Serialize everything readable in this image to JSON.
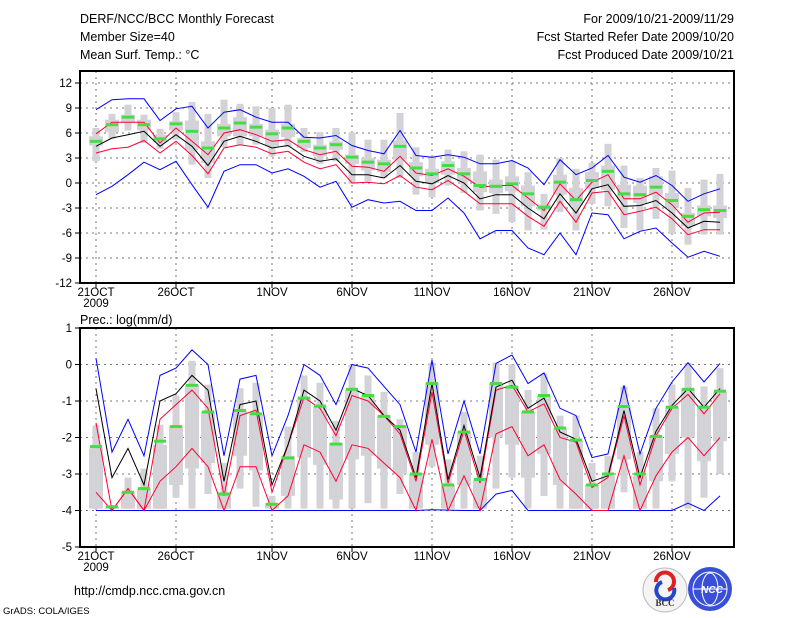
{
  "header": {
    "title": "DERF/NCC/BCC Monthly Forecast",
    "member_size": "Member Size=40",
    "variable": "Mean Surf. Temp.: °C",
    "period": "For 2009/10/21-2009/11/29",
    "start_date": "Fcst Started Refer Date 2009/10/20",
    "produced_date": "Fcst Produced Date 2009/10/21"
  },
  "footer": {
    "url": "http://cmdp.ncc.cma.gov.cn",
    "credit": "GrADS: COLA/IGES",
    "logo_bcc": "BCC",
    "logo_ncc": "NCC"
  },
  "colors": {
    "mean": "#000000",
    "spread": "#ff0033",
    "extreme": "#0000ff",
    "obs": "#44dd44",
    "box": "#d3d3d7"
  },
  "chart_data": [
    {
      "type": "line",
      "title": "Mean Surf. Temp.: °C",
      "ylim": [
        -12,
        12
      ],
      "yticks": [
        "12",
        "9",
        "6",
        "3",
        "0",
        "-3",
        "-6",
        "-9",
        "-12"
      ],
      "ytick_values": [
        12,
        9,
        6,
        3,
        0,
        -3,
        -6,
        -9,
        -12
      ],
      "xtick_labels": [
        "21OCT",
        "26OCT",
        "1NOV",
        "6NOV",
        "11NOV",
        "16NOV",
        "21NOV",
        "26NOV"
      ],
      "xtick_days": [
        0,
        5,
        11,
        16,
        21,
        26,
        31,
        36
      ],
      "year_label": "2009",
      "grid": true,
      "series": {
        "ens_mean": [
          4.4,
          5.4,
          5.8,
          6.2,
          4.4,
          5.8,
          4.4,
          2.1,
          5.0,
          5.6,
          5.0,
          4.2,
          4.5,
          3.2,
          2.6,
          2.9,
          1.0,
          1.0,
          0.6,
          2.1,
          0.2,
          -0.1,
          0.9,
          0.0,
          -1.9,
          -1.4,
          -1.4,
          -3.0,
          -4.3,
          -1.3,
          -3.6,
          -0.7,
          -0.2,
          -2.8,
          -2.7,
          -2.1,
          -3.6,
          -5.4,
          -4.6,
          -4.7
        ],
        "upper_spread": [
          5.9,
          7.3,
          7.3,
          7.3,
          4.8,
          6.6,
          5.0,
          3.4,
          6.0,
          6.4,
          5.8,
          5.0,
          5.2,
          4.0,
          3.4,
          3.8,
          2.0,
          1.9,
          1.4,
          3.2,
          1.2,
          0.9,
          1.7,
          0.8,
          -0.5,
          -0.3,
          -0.3,
          -1.8,
          -3.3,
          -0.1,
          -2.1,
          0.1,
          1.0,
          -1.9,
          -1.9,
          -1.1,
          -2.6,
          -4.7,
          -3.6,
          -3.5
        ],
        "lower_spread": [
          3.6,
          4.1,
          4.3,
          5.1,
          3.6,
          5.0,
          3.3,
          1.1,
          4.2,
          4.6,
          4.3,
          3.5,
          3.8,
          2.5,
          1.7,
          2.2,
          0.0,
          0.1,
          -0.1,
          0.9,
          -0.5,
          -0.8,
          0.3,
          -1.0,
          -2.5,
          -2.5,
          -2.5,
          -4.0,
          -5.2,
          -2.2,
          -4.7,
          -1.2,
          -1.0,
          -3.8,
          -3.4,
          -2.9,
          -4.3,
          -6.2,
          -5.6,
          -5.6
        ],
        "max": [
          8.8,
          10.0,
          10.1,
          10.1,
          7.5,
          8.9,
          9.2,
          6.6,
          8.5,
          8.8,
          7.9,
          7.3,
          7.3,
          5.5,
          5.4,
          5.7,
          4.5,
          3.9,
          3.5,
          6.3,
          3.3,
          3.1,
          3.4,
          3.1,
          2.3,
          2.3,
          2.7,
          1.8,
          -0.2,
          2.8,
          1.0,
          1.8,
          3.3,
          0.7,
          0.1,
          0.9,
          -0.3,
          -2.2,
          -1.3,
          -0.7
        ],
        "min": [
          -1.4,
          -0.4,
          1.0,
          2.5,
          1.6,
          2.6,
          -0.2,
          -2.9,
          1.4,
          2.2,
          2.2,
          1.2,
          1.7,
          0.8,
          -0.5,
          0.2,
          -2.9,
          -2.0,
          -2.4,
          -2.2,
          -3.3,
          -3.3,
          -1.8,
          -3.6,
          -6.7,
          -5.7,
          -5.7,
          -7.8,
          -8.6,
          -6.0,
          -8.6,
          -3.6,
          -3.8,
          -6.7,
          -5.8,
          -5.4,
          -7.2,
          -8.9,
          -8.2,
          -8.8
        ],
        "obs": [
          5.0,
          7.0,
          7.9,
          7.0,
          5.3,
          7.1,
          6.2,
          4.2,
          6.6,
          7.2,
          6.7,
          5.9,
          6.6,
          5.0,
          4.2,
          4.6,
          3.1,
          2.5,
          2.3,
          4.4,
          1.8,
          1.1,
          2.1,
          1.1,
          -0.3,
          -0.4,
          -0.1,
          -1.3,
          -2.9,
          0.1,
          -2.0,
          0.3,
          1.4,
          -1.3,
          -1.4,
          -0.5,
          -2.1,
          -4.0,
          -3.2,
          -3.3
        ],
        "whisker_low": [
          2.6,
          5.3,
          6.3,
          4.8,
          4.1,
          5.2,
          2.2,
          0.6,
          4.3,
          4.6,
          4.6,
          3.2,
          4.3,
          3.7,
          2.3,
          2.6,
          -0.1,
          0.2,
          0.6,
          0.6,
          -1.4,
          -1.7,
          -0.3,
          -1.2,
          -3.3,
          -3.7,
          -4.7,
          -5.7,
          -5.6,
          -3.5,
          -5.7,
          -2.5,
          -2.8,
          -5.4,
          -5.7,
          -4.3,
          -6.1,
          -7.4,
          -6.2,
          -6.2
        ],
        "whisker_high": [
          6.6,
          8.3,
          9.4,
          8.2,
          6.5,
          8.5,
          9.7,
          8.3,
          10.0,
          9.5,
          9.2,
          9.0,
          9.4,
          6.6,
          6.1,
          6.6,
          6.1,
          5.2,
          5.2,
          8.4,
          4.3,
          3.2,
          4.0,
          3.8,
          3.4,
          2.8,
          2.6,
          1.3,
          -1.3,
          3.0,
          1.7,
          2.4,
          4.7,
          2.1,
          0.6,
          1.8,
          1.5,
          -0.6,
          0.4,
          1.1
        ],
        "box_low": [
          4.5,
          6.1,
          7.2,
          6.3,
          4.9,
          6.3,
          4.0,
          2.4,
          5.6,
          5.6,
          5.6,
          4.4,
          5.5,
          4.2,
          3.2,
          4.0,
          2.3,
          1.5,
          1.3,
          2.8,
          0.8,
          0.0,
          1.0,
          0.2,
          -1.1,
          -1.2,
          -1.0,
          -2.8,
          -3.3,
          -1.4,
          -2.7,
          -0.6,
          -0.8,
          -2.0,
          -2.4,
          -1.4,
          -3.0,
          -5.2,
          -4.0,
          -4.2
        ],
        "box_high": [
          5.6,
          7.6,
          8.2,
          7.6,
          5.8,
          7.4,
          7.5,
          5.0,
          7.1,
          7.9,
          7.1,
          6.4,
          7.1,
          5.4,
          4.6,
          5.0,
          3.4,
          3.0,
          2.8,
          5.1,
          2.5,
          1.7,
          2.6,
          1.8,
          1.4,
          0.4,
          0.8,
          -0.3,
          -2.6,
          1.0,
          -0.6,
          1.3,
          2.1,
          -0.2,
          -0.3,
          0.8,
          -1.2,
          -3.6,
          -2.7,
          -2.7
        ]
      }
    },
    {
      "type": "line",
      "title": "Prec.: log(mm/d)",
      "ylim": [
        -5,
        1
      ],
      "yticks": [
        "1",
        "0",
        "-1",
        "-2",
        "-3",
        "-4",
        "-5"
      ],
      "ytick_values": [
        1,
        0,
        -1,
        -2,
        -3,
        -4,
        -5
      ],
      "xtick_labels": [
        "21OCT",
        "26OCT",
        "1NOV",
        "6NOV",
        "11NOV",
        "16NOV",
        "21NOV",
        "26NOV"
      ],
      "xtick_days": [
        0,
        5,
        11,
        16,
        21,
        26,
        31,
        36
      ],
      "year_label": "2009",
      "grid": true,
      "series": {
        "ens_mean": [
          -0.66,
          -3.1,
          -2.3,
          -3.3,
          -1.0,
          -0.8,
          -0.3,
          -0.7,
          -3.2,
          -1.1,
          -1.0,
          -3.3,
          -2.2,
          -0.7,
          -1.0,
          -1.8,
          -0.66,
          -0.85,
          -1.4,
          -1.8,
          -3.1,
          -0.52,
          -3.15,
          -1.67,
          -3.1,
          -0.62,
          -0.43,
          -1.2,
          -0.92,
          -1.85,
          -2.05,
          -3.2,
          -3.05,
          -1.26,
          -3.1,
          -1.83,
          -1.12,
          -0.66,
          -1.17,
          -0.66
        ],
        "upper_spread": [
          -1.6,
          -4.0,
          -3.4,
          -4.0,
          -1.5,
          -1.1,
          -0.7,
          -1.2,
          -3.6,
          -1.4,
          -1.25,
          -3.5,
          -2.2,
          -0.9,
          -1.2,
          -1.95,
          -0.85,
          -1.0,
          -1.4,
          -1.9,
          -3.2,
          -0.75,
          -3.25,
          -1.8,
          -3.25,
          -0.7,
          -0.57,
          -1.3,
          -1.08,
          -2.0,
          -2.13,
          -3.37,
          -3.1,
          -1.4,
          -3.3,
          -1.95,
          -1.2,
          -0.82,
          -1.35,
          -0.8
        ],
        "lower_spread": [
          -3.5,
          -4,
          -3.4,
          -4,
          -3.2,
          -2.8,
          -2.3,
          -2.8,
          -4,
          -2.8,
          -2.8,
          -4,
          -3.6,
          -2.2,
          -2.4,
          -3.2,
          -2.2,
          -2.3,
          -2.7,
          -3.1,
          -4,
          -2.05,
          -4,
          -3.05,
          -4,
          -1.9,
          -1.7,
          -2.5,
          -2.2,
          -3.15,
          -3.55,
          -4,
          -4,
          -2.5,
          -4,
          -3.05,
          -2.4,
          -2.0,
          -2.5,
          -2.0
        ],
        "max": [
          0.17,
          -2.4,
          -1.5,
          -2.5,
          -0.3,
          -0.1,
          0.4,
          0.0,
          -2.5,
          -0.4,
          -0.3,
          -2.5,
          -1.4,
          0.0,
          -0.3,
          -1.1,
          0.0,
          -0.1,
          -0.6,
          -1.1,
          -2.4,
          0.12,
          -2.45,
          -1.0,
          -2.45,
          0.03,
          0.26,
          -0.52,
          -0.23,
          -1.2,
          -1.4,
          -2.55,
          -2.45,
          -0.57,
          -2.45,
          -1.2,
          -0.48,
          0.05,
          -0.48,
          0.03
        ],
        "min": [
          -4,
          -4,
          -4,
          -4,
          -4,
          -4,
          -4,
          -4,
          -4,
          -4,
          -4,
          -4,
          -4,
          -4,
          -4,
          -4,
          -4,
          -4,
          -4,
          -4,
          -4,
          -3.98,
          -3.99,
          -4,
          -4,
          -3.55,
          -3.45,
          -4,
          -4,
          -4,
          -4,
          -4,
          -4,
          -4,
          -4,
          -4,
          -4,
          -3.8,
          -4,
          -3.6
        ],
        "obs": [
          -2.25,
          -3.9,
          -3.5,
          -3.4,
          -2.1,
          -1.7,
          -0.57,
          -1.3,
          -3.55,
          -1.26,
          -1.35,
          -3.83,
          -2.56,
          -0.92,
          -1.14,
          -2.18,
          -0.68,
          -0.85,
          -1.42,
          -1.7,
          -3.0,
          -0.52,
          -3.3,
          -1.85,
          -3.15,
          -0.52,
          -0.62,
          -1.3,
          -0.85,
          -1.74,
          -2.07,
          -3.3,
          -3.0,
          -1.15,
          -3.0,
          -1.97,
          -1.17,
          -0.68,
          -1.17,
          -0.73
        ],
        "whisker_low": [
          -3.95,
          -3.95,
          -3.95,
          -3.95,
          -3.95,
          -3.65,
          -3.95,
          -3.55,
          -3.95,
          -3.4,
          -3.9,
          -3.95,
          -3.95,
          -3.95,
          -3.95,
          -3.95,
          -3.95,
          -3.8,
          -3.95,
          -3.55,
          -3.95,
          -2.8,
          -3.95,
          -3.95,
          -3.95,
          -3.4,
          -3.1,
          -3.95,
          -3.6,
          -3.95,
          -3.95,
          -3.95,
          -3.95,
          -3.5,
          -3.95,
          -3.95,
          -3.2,
          -3.95,
          -3.65,
          -3.0
        ],
        "whisker_high": [
          -1.67,
          -3.85,
          -3.1,
          -2.85,
          -1.65,
          -0.85,
          0.1,
          -0.55,
          -2.7,
          -0.65,
          -0.5,
          -3.6,
          -1.7,
          -0.3,
          -0.5,
          -1.55,
          0.0,
          -0.3,
          -0.75,
          -1.5,
          -2.4,
          0.05,
          -2.6,
          -1.3,
          -2.5,
          0.05,
          0.0,
          -0.7,
          -0.25,
          -1.4,
          -1.4,
          -2.7,
          -2.5,
          -0.6,
          -2.4,
          -1.2,
          -0.55,
          0.05,
          -0.6,
          -0.1
        ],
        "box_low": [
          -3.95,
          -3.95,
          -3.95,
          -3.95,
          -3.95,
          -3.3,
          -2.85,
          -2.7,
          -3.95,
          -2.5,
          -2.9,
          -3.95,
          -3.6,
          -2.55,
          -2.75,
          -3.7,
          -2.6,
          -2.5,
          -2.85,
          -3.0,
          -3.95,
          -2.2,
          -3.95,
          -3.3,
          -3.95,
          -2.0,
          -2.2,
          -3.1,
          -2.45,
          -3.3,
          -3.95,
          -3.95,
          -3.95,
          -2.6,
          -3.95,
          -3.2,
          -2.45,
          -2.0,
          -2.65,
          -2.1
        ],
        "box_high": [
          -2.3,
          -3.9,
          -3.5,
          -3.4,
          -2.2,
          -1.7,
          -0.55,
          -1.3,
          -3.5,
          -1.26,
          -1.35,
          -3.8,
          -2.5,
          -0.9,
          -1.15,
          -2.15,
          -0.7,
          -0.85,
          -1.4,
          -1.7,
          -3.0,
          -0.5,
          -3.3,
          -1.85,
          -3.15,
          -0.5,
          -0.6,
          -1.3,
          -0.85,
          -1.75,
          -2.1,
          -3.3,
          -3.05,
          -1.15,
          -3.05,
          -1.95,
          -1.15,
          -0.65,
          -1.15,
          -0.75
        ]
      }
    }
  ]
}
